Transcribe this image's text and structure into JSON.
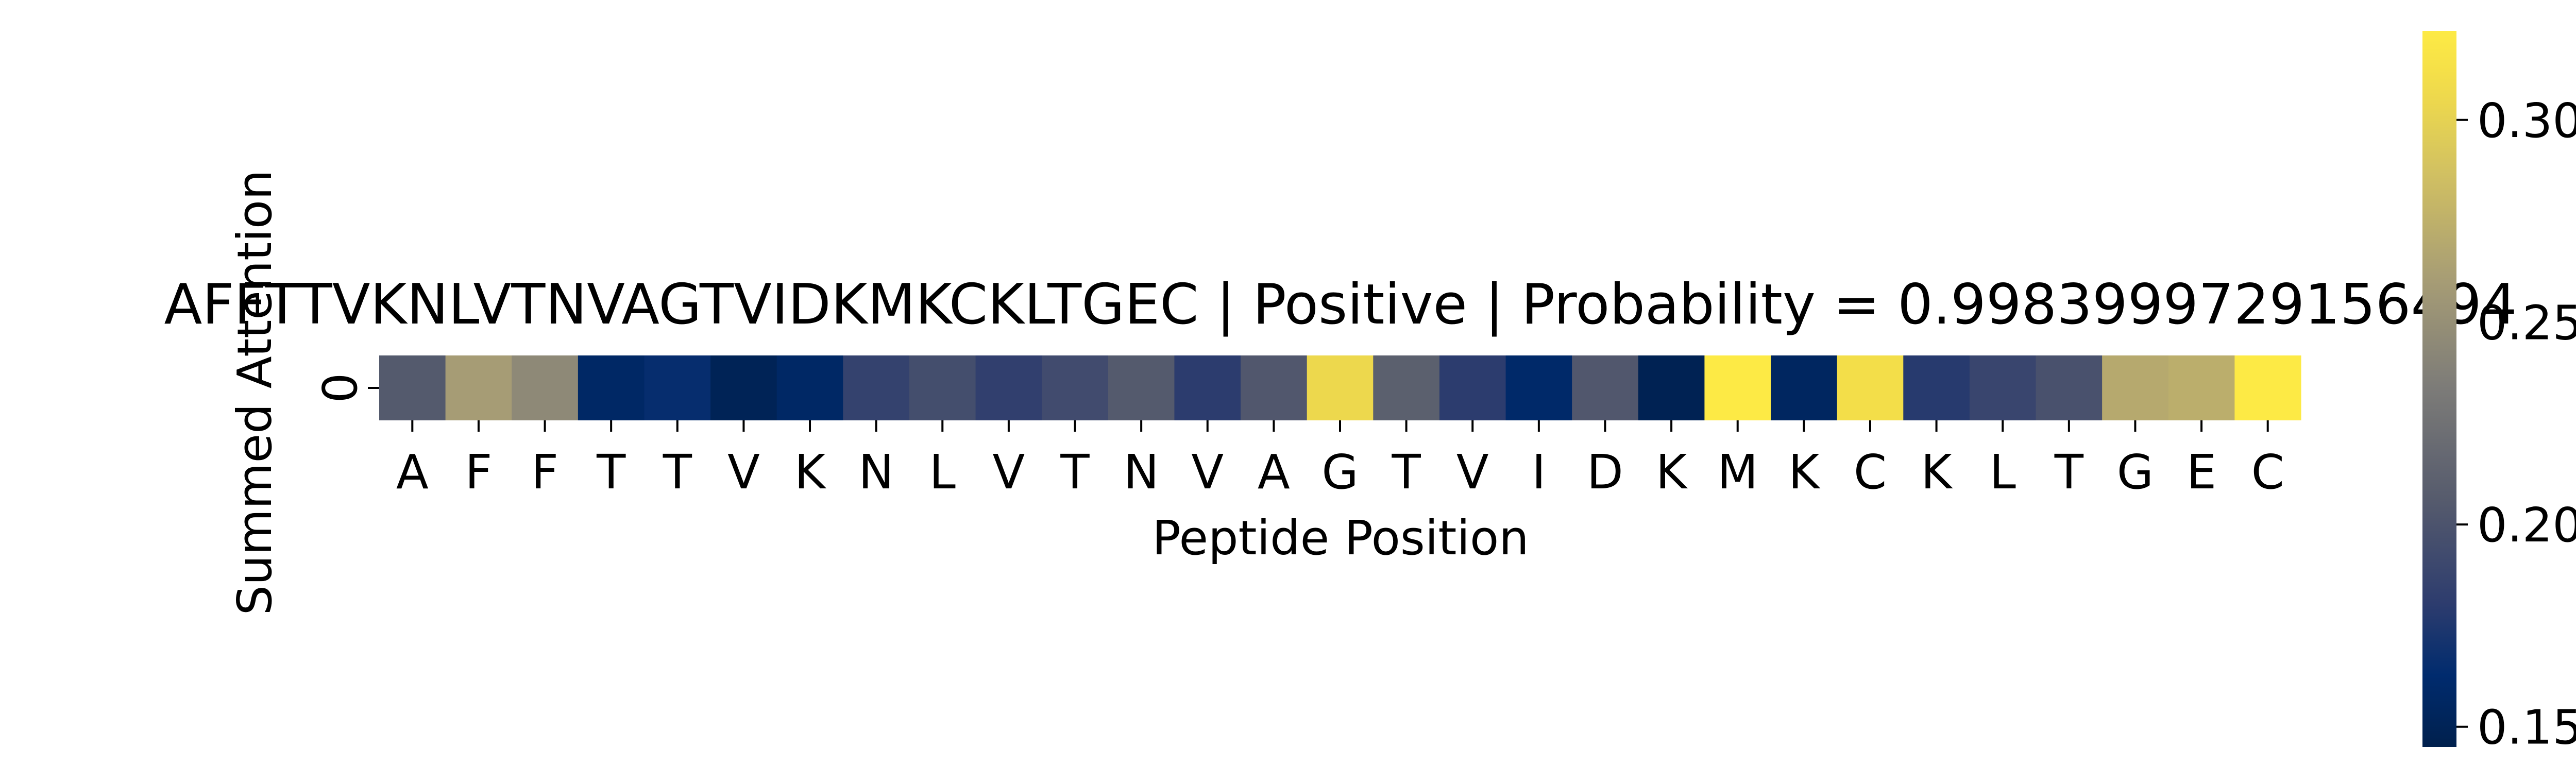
{
  "chart_data": {
    "type": "heatmap",
    "title": "AFFTTVKNLVTNVAGTVIDKMKCKLTGEC | Positive | Probability = 0.9983999729156494",
    "xlabel": "Peptide Position",
    "ylabel": "Summed Attention",
    "x": [
      "A",
      "F",
      "F",
      "T",
      "T",
      "V",
      "K",
      "N",
      "L",
      "V",
      "T",
      "N",
      "V",
      "A",
      "G",
      "T",
      "V",
      "I",
      "D",
      "K",
      "M",
      "K",
      "C",
      "K",
      "L",
      "T",
      "G",
      "E",
      "C"
    ],
    "y": [
      "0"
    ],
    "values": [
      [
        0.205,
        0.26,
        0.245,
        0.158,
        0.165,
        0.15,
        0.158,
        0.185,
        0.195,
        0.183,
        0.193,
        0.205,
        0.18,
        0.203,
        0.305,
        0.21,
        0.18,
        0.16,
        0.203,
        0.148,
        0.322,
        0.155,
        0.31,
        0.178,
        0.188,
        0.198,
        0.27,
        0.273,
        0.322
      ]
    ],
    "colormap": "cividis",
    "colorbar": {
      "range": [
        0.145,
        0.322
      ],
      "ticks": [
        0.15,
        0.2,
        0.25,
        0.3
      ],
      "tick_labels": [
        "0.15",
        "0.20",
        "0.25",
        "0.30"
      ]
    }
  }
}
